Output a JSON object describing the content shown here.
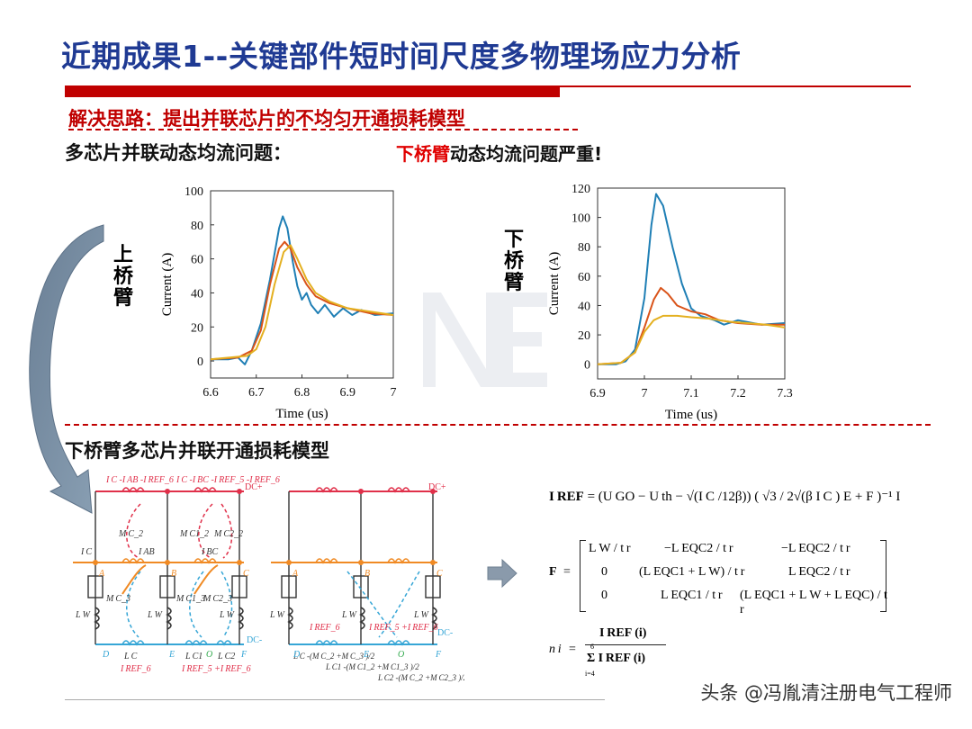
{
  "slide": {
    "title": "近期成果1--关键部件短时间尺度多物理场应力分析",
    "solution": "解决思路：提出并联芯片的不均匀开通损耗模型",
    "subhead_left": "多芯片并联动态均流问题：",
    "subhead_right_red": "下桥臂",
    "subhead_right_rest": "动态均流问题严重!",
    "label_upper": "上桥臂",
    "label_lower": "下桥臂",
    "model_title": "下桥臂多芯片并联开通损耗模型",
    "watermark": "头条 @冯胤清注册电气工程师",
    "colors": {
      "title_blue": "#1f3a93",
      "accent_red": "#c00000",
      "series_blue": "#1f7fb5",
      "series_orange": "#d95319",
      "series_yellow": "#e4b020"
    }
  },
  "chart_data": [
    {
      "type": "line",
      "title": "",
      "xlabel": "Time (us)",
      "ylabel": "Current (A)",
      "xlim": [
        6.6,
        7.0
      ],
      "ylim": [
        -10,
        100
      ],
      "x_ticks": [
        "6.6",
        "6.7",
        "6.8",
        "6.9",
        "7"
      ],
      "y_ticks": [
        "0",
        "20",
        "40",
        "60",
        "80",
        "100"
      ],
      "series": [
        {
          "color": "#1f7fb5",
          "points": [
            [
              6.6,
              1
            ],
            [
              6.64,
              1
            ],
            [
              6.66,
              2
            ],
            [
              6.675,
              -2
            ],
            [
              6.69,
              6
            ],
            [
              6.71,
              22
            ],
            [
              6.73,
              48
            ],
            [
              6.75,
              78
            ],
            [
              6.758,
              85
            ],
            [
              6.768,
              78
            ],
            [
              6.78,
              58
            ],
            [
              6.79,
              44
            ],
            [
              6.8,
              36
            ],
            [
              6.81,
              40
            ],
            [
              6.82,
              33
            ],
            [
              6.835,
              28
            ],
            [
              6.85,
              33
            ],
            [
              6.87,
              26
            ],
            [
              6.89,
              31
            ],
            [
              6.91,
              27
            ],
            [
              6.93,
              30
            ],
            [
              6.96,
              27
            ],
            [
              7.0,
              28
            ]
          ]
        },
        {
          "color": "#d95319",
          "points": [
            [
              6.6,
              1
            ],
            [
              6.66,
              2
            ],
            [
              6.69,
              6
            ],
            [
              6.71,
              18
            ],
            [
              6.73,
              45
            ],
            [
              6.75,
              66
            ],
            [
              6.762,
              70
            ],
            [
              6.775,
              66
            ],
            [
              6.79,
              55
            ],
            [
              6.81,
              45
            ],
            [
              6.83,
              38
            ],
            [
              6.86,
              34
            ],
            [
              6.9,
              31
            ],
            [
              6.95,
              28
            ],
            [
              7.0,
              27
            ]
          ]
        },
        {
          "color": "#e4b020",
          "points": [
            [
              6.6,
              1
            ],
            [
              6.68,
              3
            ],
            [
              6.7,
              7
            ],
            [
              6.72,
              20
            ],
            [
              6.74,
              45
            ],
            [
              6.76,
              64
            ],
            [
              6.775,
              68
            ],
            [
              6.79,
              60
            ],
            [
              6.81,
              48
            ],
            [
              6.83,
              40
            ],
            [
              6.86,
              35
            ],
            [
              6.9,
              31
            ],
            [
              6.95,
              29
            ],
            [
              7.0,
              27
            ]
          ]
        }
      ]
    },
    {
      "type": "line",
      "title": "",
      "xlabel": "Time (us)",
      "ylabel": "Current (A)",
      "xlim": [
        6.9,
        7.3
      ],
      "ylim": [
        -10,
        120
      ],
      "x_ticks": [
        "6.9",
        "7",
        "7.1",
        "7.2",
        "7.3"
      ],
      "y_ticks": [
        "0",
        "20",
        "40",
        "60",
        "80",
        "100",
        "120"
      ],
      "series": [
        {
          "color": "#1f7fb5",
          "points": [
            [
              6.9,
              0
            ],
            [
              6.94,
              0
            ],
            [
              6.96,
              2
            ],
            [
              6.98,
              10
            ],
            [
              7.0,
              45
            ],
            [
              7.015,
              95
            ],
            [
              7.025,
              116
            ],
            [
              7.04,
              108
            ],
            [
              7.06,
              80
            ],
            [
              7.08,
              55
            ],
            [
              7.1,
              38
            ],
            [
              7.12,
              33
            ],
            [
              7.15,
              30
            ],
            [
              7.17,
              27
            ],
            [
              7.2,
              30
            ],
            [
              7.25,
              27
            ],
            [
              7.3,
              28
            ]
          ]
        },
        {
          "color": "#d95319",
          "points": [
            [
              6.9,
              0
            ],
            [
              6.95,
              1
            ],
            [
              6.98,
              8
            ],
            [
              7.0,
              25
            ],
            [
              7.02,
              44
            ],
            [
              7.035,
              52
            ],
            [
              7.05,
              48
            ],
            [
              7.07,
              40
            ],
            [
              7.1,
              36
            ],
            [
              7.13,
              34
            ],
            [
              7.16,
              30
            ],
            [
              7.2,
              28
            ],
            [
              7.25,
              27
            ],
            [
              7.3,
              27
            ]
          ]
        },
        {
          "color": "#e4b020",
          "points": [
            [
              6.9,
              0
            ],
            [
              6.95,
              1
            ],
            [
              6.98,
              8
            ],
            [
              7.0,
              22
            ],
            [
              7.02,
              30
            ],
            [
              7.04,
              33
            ],
            [
              7.07,
              33
            ],
            [
              7.1,
              32
            ],
            [
              7.14,
              31
            ],
            [
              7.18,
              29
            ],
            [
              7.22,
              28
            ],
            [
              7.26,
              27
            ],
            [
              7.3,
              25
            ]
          ]
        }
      ]
    }
  ],
  "circuit": {
    "labels": {
      "dc_plus": "DC+",
      "dc_minus": "DC-",
      "node_a": "A",
      "node_b": "B",
      "node_c": "C",
      "node_d": "D",
      "node_e": "E",
      "node_f": "F",
      "node_o": "O",
      "i_top_1": "I C -I AB -I REF_6",
      "i_top_2": "I C -I BC -I REF_5 -I REF_6",
      "ic": "I C",
      "iab": "I AB",
      "ibc": "I BC",
      "mc2": "M C_2",
      "mc12": "M C1_2",
      "mc22": "M C2_2",
      "mc3": "M C_3",
      "mc13": "M C1_3",
      "mc23": "M C2_3",
      "lw": "L W",
      "lc": "L C",
      "lc1": "L C1",
      "lc2": "L C2",
      "iref6": "I REF_6",
      "iref56": "I REF_5 +I REF_6",
      "eq1": "L C -(M C_2 +M C_3 )/2",
      "eq2": "L C1 -(M C1_2 +M C1_3 )/2",
      "eq3": "L C2 -(M C_2 +M C2_3 )/2"
    }
  },
  "equations": {
    "iref_lhs": "I REF",
    "iref_rhs": "= (U GO − U th − √(I C /12β))  ( √3 / 2√(β I C ) E + F )⁻¹ I",
    "f_lhs": "F",
    "f_row1": [
      "L W / t r",
      "−L EQC2 / t r",
      "−L EQC2 / t r"
    ],
    "f_row2": [
      "0",
      "(L EQC1 + L W) / t r",
      "L EQC2 / t r"
    ],
    "f_row3": [
      "0",
      "L EQC1 / t r",
      "(L EQC1 + L W + L EQC) / t r"
    ],
    "ni_lhs": "n i",
    "ni_num": "I REF (i)",
    "ni_den": "Σ I REF (i)",
    "ni_sum_top": "6",
    "ni_sum_bottom": "i=4"
  }
}
